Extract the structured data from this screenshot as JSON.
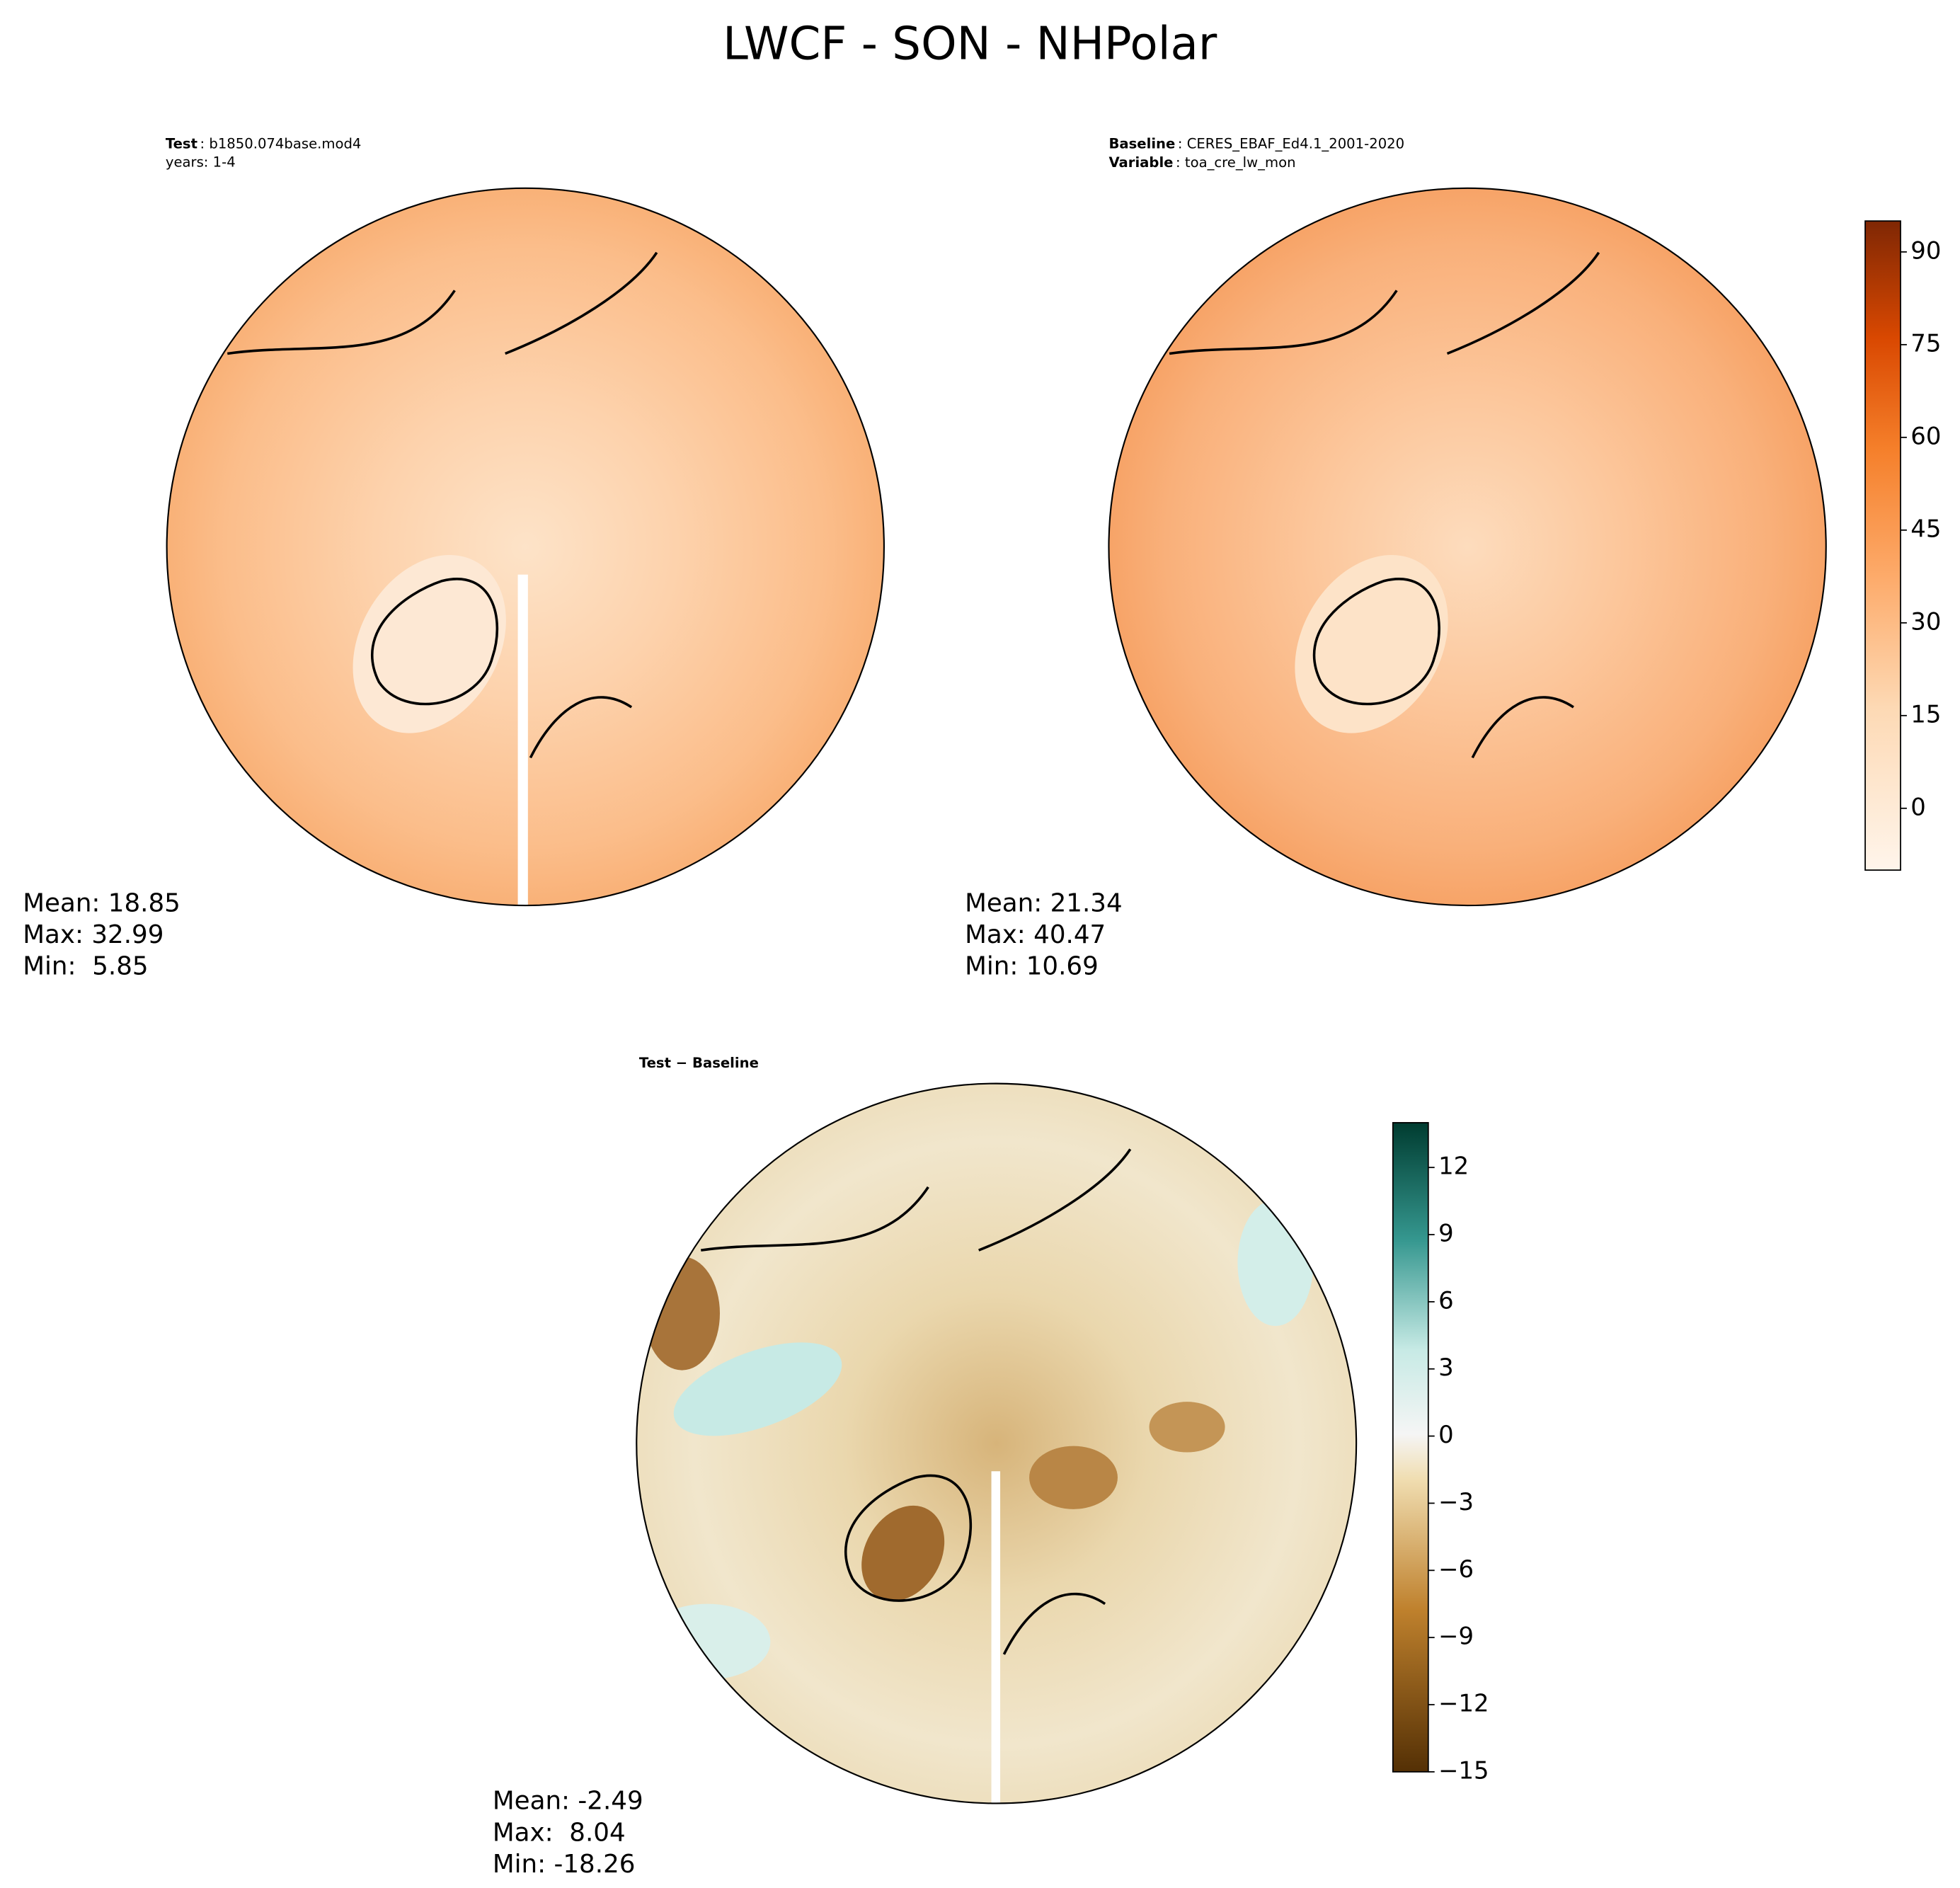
{
  "title": "LWCF - SON - NHPolar",
  "panels": [
    {
      "header": [
        {
          "key": "Test",
          "value": ": b1850.074base.mod4"
        },
        {
          "text": "years: 1-4"
        }
      ],
      "stats": [
        "Mean: 18.85",
        "Max: 32.99",
        "Min:  5.85"
      ]
    },
    {
      "header": [
        {
          "key": "Baseline",
          "value": ": CERES_EBAF_Ed4.1_2001-2020"
        },
        {
          "key": "Variable",
          "value": ": toa_cre_lw_mon"
        }
      ],
      "stats": [
        "Mean: 21.34",
        "Max: 40.47",
        "Min: 10.69"
      ]
    },
    {
      "header": [
        {
          "key": "Test − Baseline"
        }
      ],
      "stats": [
        "Mean: -2.49",
        "Max:  8.04",
        "Min: -18.26"
      ]
    }
  ],
  "colorbars": [
    {
      "lim": [
        -10,
        95
      ],
      "ticks": [
        0,
        15,
        30,
        45,
        60,
        75,
        90
      ]
    },
    {
      "lim": [
        -15,
        14
      ],
      "ticks": [
        {
          "value": -15,
          "label": "−15"
        },
        {
          "value": -12,
          "label": "−12"
        },
        {
          "value": -9,
          "label": "−9"
        },
        {
          "value": -6,
          "label": "−6"
        },
        {
          "value": -3,
          "label": "−3"
        },
        0,
        3,
        6,
        9,
        12
      ]
    }
  ]
}
